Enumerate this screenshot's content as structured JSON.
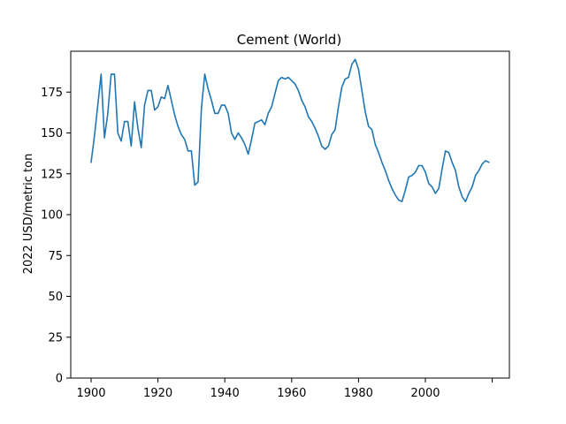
{
  "chart_data": {
    "type": "line",
    "title": "Cement (World)",
    "xlabel": "",
    "ylabel": "2022 USD/metric ton",
    "xlim": [
      1900,
      2019
    ],
    "ylim": [
      0,
      200
    ],
    "x_ticks": [
      1900,
      1920,
      1940,
      1960,
      1980,
      2000,
      2020
    ],
    "x_tick_labels": [
      "1900",
      "1920",
      "1940",
      "1960",
      "1980",
      "2000",
      ""
    ],
    "y_ticks": [
      0,
      25,
      50,
      75,
      100,
      125,
      150,
      175
    ],
    "y_tick_labels": [
      "0",
      "25",
      "50",
      "75",
      "100",
      "125",
      "150",
      "175"
    ],
    "grid": false,
    "legend": "none",
    "line_color": "#1f77b4",
    "x": [
      1900,
      1901,
      1902,
      1903,
      1904,
      1905,
      1906,
      1907,
      1908,
      1909,
      1910,
      1911,
      1912,
      1913,
      1914,
      1915,
      1916,
      1917,
      1918,
      1919,
      1920,
      1921,
      1922,
      1923,
      1924,
      1925,
      1926,
      1927,
      1928,
      1929,
      1930,
      1931,
      1932,
      1933,
      1934,
      1935,
      1936,
      1937,
      1938,
      1939,
      1940,
      1941,
      1942,
      1943,
      1944,
      1945,
      1946,
      1947,
      1948,
      1949,
      1950,
      1951,
      1952,
      1953,
      1954,
      1955,
      1956,
      1957,
      1958,
      1959,
      1960,
      1961,
      1962,
      1963,
      1964,
      1965,
      1966,
      1967,
      1968,
      1969,
      1970,
      1971,
      1972,
      1973,
      1974,
      1975,
      1976,
      1977,
      1978,
      1979,
      1980,
      1981,
      1982,
      1983,
      1984,
      1985,
      1986,
      1987,
      1988,
      1989,
      1990,
      1991,
      1992,
      1993,
      1994,
      1995,
      1996,
      1997,
      1998,
      1999,
      2000,
      2001,
      2002,
      2003,
      2004,
      2005,
      2006,
      2007,
      2008,
      2009,
      2010,
      2011,
      2012,
      2013,
      2014,
      2015,
      2016,
      2017,
      2018,
      2019
    ],
    "series": [
      {
        "values": [
          132,
          148,
          167,
          186,
          147,
          162,
          186,
          186,
          150,
          145,
          157,
          157,
          142,
          169,
          153,
          141,
          167,
          176,
          176,
          164,
          166,
          172,
          171,
          179,
          170,
          161,
          154,
          149,
          146,
          139,
          139,
          118,
          120,
          165,
          186,
          177,
          170,
          162,
          162,
          167,
          167,
          162,
          150,
          146,
          150,
          147,
          143,
          137,
          146,
          156,
          157,
          158,
          155,
          162,
          166,
          174,
          182,
          184,
          183,
          184,
          182,
          180,
          176,
          170,
          166,
          160,
          157,
          153,
          148,
          142,
          140,
          142,
          149,
          152,
          166,
          178,
          183,
          184,
          192,
          195,
          189,
          176,
          163,
          154,
          152,
          143,
          138,
          132,
          127,
          121,
          116,
          112,
          109,
          108,
          115,
          123,
          124,
          126,
          130,
          130,
          126,
          119,
          117,
          113,
          116,
          128,
          139,
          138,
          132,
          127,
          117,
          111,
          108,
          113,
          117,
          124,
          127,
          131,
          133,
          132
        ]
      }
    ]
  }
}
